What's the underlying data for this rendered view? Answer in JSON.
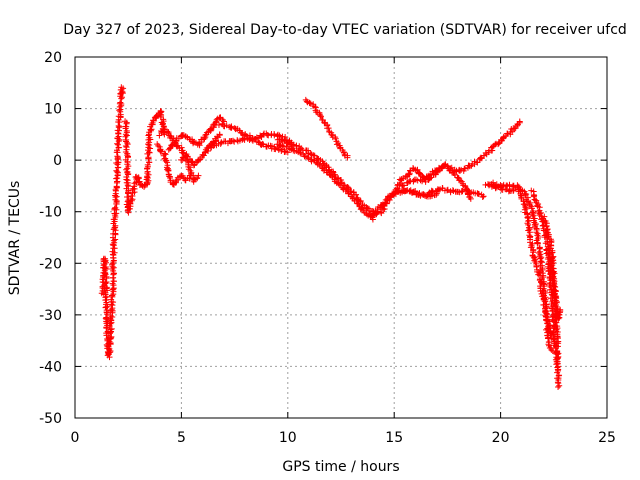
{
  "chart_data": {
    "type": "scatter",
    "title": "Day 327 of 2023, Sidereal Day-to-day VTEC variation (SDTVAR) for receiver ufcd",
    "xlabel": "GPS time / hours",
    "ylabel": "SDTVAR / TECUs",
    "xlim": [
      0,
      25
    ],
    "ylim": [
      -50,
      20
    ],
    "xticks": [
      0,
      5,
      10,
      15,
      20,
      25
    ],
    "yticks": [
      -50,
      -40,
      -30,
      -20,
      -10,
      0,
      10,
      20
    ],
    "grid": true,
    "marker": "+",
    "series": [
      {
        "name": "SDTVAR",
        "color": "#ff0000",
        "segments": [
          {
            "x": [
              1.3,
              1.35,
              1.4,
              1.45,
              1.5,
              1.55,
              1.6,
              1.65,
              1.7
            ],
            "y": [
              -26,
              -22,
              -19,
              -24,
              -30,
              -37,
              -38,
              -35,
              -31
            ]
          },
          {
            "x": [
              1.7,
              1.75,
              1.8,
              1.85,
              1.9,
              1.95,
              2.0,
              2.05,
              2.1,
              2.15,
              2.2,
              2.25
            ],
            "y": [
              -31,
              -27,
              -20,
              -14,
              -9,
              -4,
              1,
              5,
              9,
              12,
              14,
              13
            ]
          },
          {
            "x": [
              2.4,
              2.5,
              2.6,
              2.7,
              2.8,
              2.9,
              3.0,
              3.1,
              3.2,
              3.3,
              3.4
            ],
            "y": [
              7.5,
              -10,
              -9,
              -7,
              -5,
              -3,
              -4,
              -5,
              -5,
              -5,
              -4.5
            ]
          },
          {
            "x": [
              3.4,
              3.5,
              3.6,
              3.7,
              3.8,
              3.9,
              4.0,
              4.1,
              4.2
            ],
            "y": [
              -4.5,
              5,
              7,
              8,
              8.5,
              9,
              9.5,
              8,
              5
            ]
          },
          {
            "x": [
              3.9,
              4.0,
              4.2,
              4.4,
              4.6,
              4.8,
              5.0,
              5.2,
              5.4
            ],
            "y": [
              3,
              2,
              1,
              -2,
              -5,
              -4,
              -3,
              -4,
              -3
            ]
          },
          {
            "x": [
              4.0,
              4.2,
              4.4,
              4.6,
              4.8,
              5.0,
              5.2,
              5.4,
              5.6,
              5.8
            ],
            "y": [
              5,
              6,
              5,
              4,
              3,
              2,
              1,
              -2,
              -4,
              -3
            ]
          },
          {
            "x": [
              4.4,
              4.6,
              4.8,
              5.0,
              5.2,
              5.4,
              5.6,
              5.8,
              6.0,
              6.2,
              6.4,
              6.6,
              6.8,
              7.0
            ],
            "y": [
              2,
              3,
              4,
              5,
              4.5,
              4,
              3.5,
              3,
              4,
              5,
              6,
              7,
              8.5,
              7.5
            ]
          },
          {
            "x": [
              5.0,
              5.2,
              5.4,
              5.6,
              5.8,
              6.0,
              6.2,
              6.4,
              6.6,
              6.8
            ],
            "y": [
              0,
              1,
              0,
              -1,
              0,
              1,
              2,
              3,
              4,
              5
            ]
          },
          {
            "x": [
              6.2,
              6.6,
              7.0,
              7.4,
              7.8,
              8.2,
              8.6,
              9.0,
              9.4,
              9.8,
              10.2
            ],
            "y": [
              2,
              3,
              3.5,
              3.5,
              4,
              4,
              4.5,
              5,
              5,
              4.5,
              3
            ]
          },
          {
            "x": [
              6.8,
              7.2,
              7.6,
              8.0,
              8.4,
              8.8,
              9.2,
              9.6,
              10.0
            ],
            "y": [
              7,
              6.5,
              6,
              5,
              4,
              3,
              2.5,
              2,
              1.5
            ]
          },
          {
            "x": [
              9.5,
              10.0,
              10.5,
              11.0,
              11.5,
              12.0,
              12.5,
              13.0,
              13.5,
              13.8,
              14.0
            ],
            "y": [
              3,
              2.5,
              1.5,
              0.5,
              -1,
              -3,
              -5,
              -7,
              -9.5,
              -10.5,
              -11.5
            ]
          },
          {
            "x": [
              9.5,
              10.0,
              10.5,
              11.0,
              11.5,
              12.0,
              12.5,
              13.0,
              13.5,
              13.8,
              14.1
            ],
            "y": [
              4,
              3.5,
              2.5,
              1.5,
              0,
              -2,
              -4,
              -6,
              -8.5,
              -9.5,
              -10.5
            ]
          },
          {
            "x": [
              10.8,
              11.2,
              11.6,
              12.0,
              12.4,
              12.8
            ],
            "y": [
              11.5,
              10.5,
              8,
              5.5,
              3,
              0.5
            ]
          },
          {
            "x": [
              14.0,
              14.3,
              14.6,
              15.0,
              15.4,
              15.8,
              16.2,
              16.6,
              17.0
            ],
            "y": [
              -11,
              -9,
              -8,
              -6.5,
              -6,
              -6,
              -6.5,
              -7,
              -6.5
            ]
          },
          {
            "x": [
              14.1,
              14.4,
              14.8,
              15.2,
              15.6,
              16.0,
              16.4,
              16.8,
              17.2,
              17.6,
              18.0,
              18.4,
              18.8,
              19.2
            ],
            "y": [
              -10.5,
              -10,
              -7,
              -6,
              -6,
              -6.5,
              -7,
              -6,
              -5.5,
              -6,
              -6,
              -6,
              -6.5,
              -7
            ]
          },
          {
            "x": [
              15.0,
              15.3,
              15.6,
              15.9,
              16.2,
              16.5,
              16.8,
              17.1,
              17.4,
              17.7,
              18.0,
              18.3,
              18.6
            ],
            "y": [
              -6.5,
              -4,
              -3,
              -1.5,
              -2.5,
              -4,
              -3,
              -2,
              -1,
              -2,
              -3.5,
              -5,
              -7.5
            ]
          },
          {
            "x": [
              15.4,
              15.8,
              16.2,
              16.6,
              17.0,
              17.4,
              17.8,
              18.2,
              18.6,
              19.0,
              19.4,
              19.8,
              20.2,
              20.6,
              20.9
            ],
            "y": [
              -5,
              -4,
              -4,
              -3,
              -2,
              -1,
              -2,
              -2,
              -1,
              0,
              1.5,
              3,
              4.5,
              6,
              7.5
            ]
          },
          {
            "x": [
              19.3,
              19.6,
              20.0,
              20.4,
              20.8,
              21.2,
              21.5,
              21.7,
              21.9,
              22.1,
              22.2,
              22.3,
              22.45
            ],
            "y": [
              -5,
              -4.5,
              -5,
              -5,
              -5,
              -7,
              -10,
              -14,
              -20,
              -27,
              -33,
              -36,
              -37
            ]
          },
          {
            "x": [
              19.6,
              20.0,
              20.4,
              20.8,
              21.0,
              21.2,
              21.4,
              21.6,
              21.8,
              22.0,
              22.2,
              22.4,
              22.6
            ],
            "y": [
              -5,
              -5.5,
              -6,
              -5.5,
              -7,
              -10,
              -15,
              -20,
              -22,
              -27,
              -31,
              -34,
              -36
            ]
          },
          {
            "x": [
              21.5,
              21.7,
              21.9,
              22.1,
              22.2,
              22.3,
              22.4,
              22.5,
              22.6,
              22.7
            ],
            "y": [
              -6,
              -8,
              -11,
              -14,
              -17,
              -22,
              -27,
              -33,
              -37,
              -40
            ]
          },
          {
            "x": [
              22.0,
              22.2,
              22.4,
              22.5,
              22.6,
              22.65,
              22.7
            ],
            "y": [
              -11,
              -13,
              -17,
              -22,
              -28,
              -35,
              -44
            ]
          },
          {
            "x": [
              22.3,
              22.4,
              22.5,
              22.6,
              22.7,
              22.8
            ],
            "y": [
              -17,
              -21,
              -24,
              -28,
              -31,
              -29
            ]
          }
        ]
      }
    ]
  }
}
